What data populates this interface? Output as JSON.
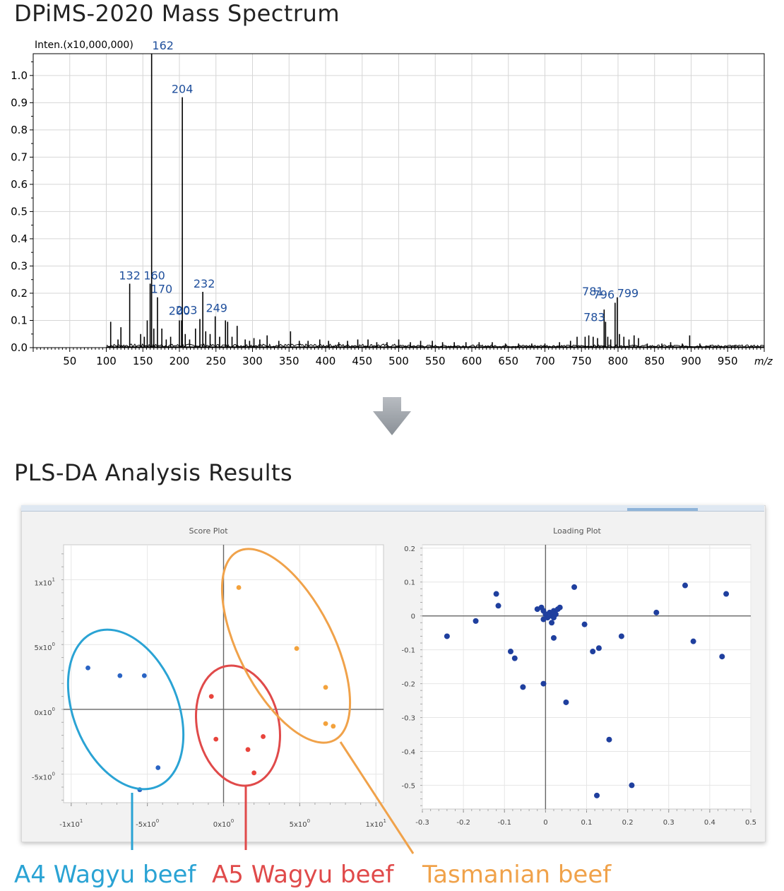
{
  "headings": {
    "mass_spectrum": "DPiMS-2020 Mass Spectrum",
    "plsda": "PLS-DA Analysis Results"
  },
  "groups": [
    {
      "label": "A4 Wagyu beef",
      "color": "#2aa3d4"
    },
    {
      "label": "A5 Wagyu beef",
      "color": "#e04a4a"
    },
    {
      "label": "Tasmanian beef",
      "color": "#f0a24a"
    }
  ],
  "icons": {
    "arrow": "down-arrow-icon"
  },
  "chart_data": [
    {
      "type": "line",
      "ylabel": "Inten.(x10,000,000)",
      "xlabel": "m/z",
      "xlim": [
        0,
        1000
      ],
      "ylim": [
        0,
        1.08
      ],
      "grid": true,
      "x_ticks": [
        50,
        100,
        150,
        200,
        250,
        300,
        350,
        400,
        450,
        500,
        550,
        600,
        650,
        700,
        750,
        800,
        850,
        900,
        950
      ],
      "y_ticks": [
        "0.0",
        "0.1",
        "0.2",
        "0.3",
        "0.4",
        "0.5",
        "0.6",
        "0.7",
        "0.8",
        "0.9",
        "1.0"
      ],
      "line_color": "#000000",
      "label_color": "#1f4f9c",
      "peaks": [
        {
          "mz": 106,
          "i": 0.095
        },
        {
          "mz": 116,
          "i": 0.03
        },
        {
          "mz": 120,
          "i": 0.075
        },
        {
          "mz": 132,
          "i": 0.235
        },
        {
          "mz": 147,
          "i": 0.05
        },
        {
          "mz": 152,
          "i": 0.04
        },
        {
          "mz": 156,
          "i": 0.1
        },
        {
          "mz": 160,
          "i": 0.235
        },
        {
          "mz": 162,
          "i": 1.08
        },
        {
          "mz": 165,
          "i": 0.07
        },
        {
          "mz": 170,
          "i": 0.185
        },
        {
          "mz": 176,
          "i": 0.07
        },
        {
          "mz": 182,
          "i": 0.03
        },
        {
          "mz": 188,
          "i": 0.04
        },
        {
          "mz": 200,
          "i": 0.1
        },
        {
          "mz": 203,
          "i": 0.1
        },
        {
          "mz": 204,
          "i": 0.92
        },
        {
          "mz": 208,
          "i": 0.05
        },
        {
          "mz": 214,
          "i": 0.03
        },
        {
          "mz": 222,
          "i": 0.07
        },
        {
          "mz": 228,
          "i": 0.105
        },
        {
          "mz": 232,
          "i": 0.205
        },
        {
          "mz": 236,
          "i": 0.06
        },
        {
          "mz": 242,
          "i": 0.05
        },
        {
          "mz": 249,
          "i": 0.115
        },
        {
          "mz": 255,
          "i": 0.04
        },
        {
          "mz": 263,
          "i": 0.1
        },
        {
          "mz": 266,
          "i": 0.095
        },
        {
          "mz": 272,
          "i": 0.04
        },
        {
          "mz": 279,
          "i": 0.08
        },
        {
          "mz": 290,
          "i": 0.03
        },
        {
          "mz": 296,
          "i": 0.025
        },
        {
          "mz": 302,
          "i": 0.035
        },
        {
          "mz": 310,
          "i": 0.03
        },
        {
          "mz": 320,
          "i": 0.045
        },
        {
          "mz": 336,
          "i": 0.025
        },
        {
          "mz": 352,
          "i": 0.06
        },
        {
          "mz": 364,
          "i": 0.025
        },
        {
          "mz": 376,
          "i": 0.025
        },
        {
          "mz": 392,
          "i": 0.03
        },
        {
          "mz": 404,
          "i": 0.025
        },
        {
          "mz": 418,
          "i": 0.02
        },
        {
          "mz": 430,
          "i": 0.025
        },
        {
          "mz": 444,
          "i": 0.03
        },
        {
          "mz": 458,
          "i": 0.03
        },
        {
          "mz": 470,
          "i": 0.02
        },
        {
          "mz": 484,
          "i": 0.02
        },
        {
          "mz": 500,
          "i": 0.03
        },
        {
          "mz": 516,
          "i": 0.02
        },
        {
          "mz": 530,
          "i": 0.025
        },
        {
          "mz": 546,
          "i": 0.025
        },
        {
          "mz": 560,
          "i": 0.02
        },
        {
          "mz": 576,
          "i": 0.02
        },
        {
          "mz": 592,
          "i": 0.02
        },
        {
          "mz": 610,
          "i": 0.02
        },
        {
          "mz": 628,
          "i": 0.02
        },
        {
          "mz": 646,
          "i": 0.015
        },
        {
          "mz": 664,
          "i": 0.015
        },
        {
          "mz": 682,
          "i": 0.015
        },
        {
          "mz": 700,
          "i": 0.015
        },
        {
          "mz": 720,
          "i": 0.02
        },
        {
          "mz": 735,
          "i": 0.025
        },
        {
          "mz": 744,
          "i": 0.04
        },
        {
          "mz": 755,
          "i": 0.04
        },
        {
          "mz": 760,
          "i": 0.045
        },
        {
          "mz": 766,
          "i": 0.04
        },
        {
          "mz": 772,
          "i": 0.035
        },
        {
          "mz": 781,
          "i": 0.14
        },
        {
          "mz": 783,
          "i": 0.095
        },
        {
          "mz": 786,
          "i": 0.04
        },
        {
          "mz": 790,
          "i": 0.03
        },
        {
          "mz": 796,
          "i": 0.165
        },
        {
          "mz": 799,
          "i": 0.185
        },
        {
          "mz": 802,
          "i": 0.05
        },
        {
          "mz": 808,
          "i": 0.04
        },
        {
          "mz": 815,
          "i": 0.03
        },
        {
          "mz": 822,
          "i": 0.045
        },
        {
          "mz": 828,
          "i": 0.035
        },
        {
          "mz": 840,
          "i": 0.015
        },
        {
          "mz": 860,
          "i": 0.015
        },
        {
          "mz": 872,
          "i": 0.02
        },
        {
          "mz": 888,
          "i": 0.015
        },
        {
          "mz": 898,
          "i": 0.045
        },
        {
          "mz": 912,
          "i": 0.015
        },
        {
          "mz": 926,
          "i": 0.01
        },
        {
          "mz": 960,
          "i": 0.008
        }
      ],
      "annotations": [
        {
          "text": "162",
          "mz": 162
        },
        {
          "text": "204",
          "mz": 204
        },
        {
          "text": "132",
          "mz": 132
        },
        {
          "text": "160",
          "mz": 160
        },
        {
          "text": "170",
          "mz": 170
        },
        {
          "text": "203",
          "mz": 203
        },
        {
          "text": "200",
          "mz": 200
        },
        {
          "text": "232",
          "mz": 232
        },
        {
          "text": "249",
          "mz": 249
        },
        {
          "text": "796",
          "mz": 796
        },
        {
          "text": "799",
          "mz": 799
        },
        {
          "text": "781",
          "mz": 781
        },
        {
          "text": "783",
          "mz": 783
        }
      ]
    },
    {
      "type": "scatter",
      "title": "Score Plot",
      "xlim": [
        -1.05,
        1.05
      ],
      "ylim": [
        -0.72,
        1.27
      ],
      "x_ticks": [
        {
          "v": -1,
          "base": "-1x10",
          "exp": "1"
        },
        {
          "v": -0.5,
          "base": "-5x10",
          "exp": "0"
        },
        {
          "v": 0,
          "base": "0x10",
          "exp": "0"
        },
        {
          "v": 0.5,
          "base": "5x10",
          "exp": "0"
        },
        {
          "v": 1,
          "base": "1x10",
          "exp": "1"
        }
      ],
      "y_ticks": [
        {
          "v": 1,
          "base": "1x10",
          "exp": "1"
        },
        {
          "v": 0.5,
          "base": "5x10",
          "exp": "0"
        },
        {
          "v": 0,
          "base": "0x10",
          "exp": "0"
        },
        {
          "v": -0.5,
          "base": "-5x10",
          "exp": "0"
        }
      ],
      "series": [
        {
          "name": "A4 Wagyu beef",
          "color": "#2a64c4",
          "points": [
            [
              -0.89,
              0.32
            ],
            [
              -0.68,
              0.26
            ],
            [
              -0.52,
              0.26
            ],
            [
              -0.43,
              -0.45
            ],
            [
              -0.55,
              -0.62
            ]
          ]
        },
        {
          "name": "A5 Wagyu beef",
          "color": "#e8443c",
          "points": [
            [
              -0.08,
              0.1
            ],
            [
              -0.05,
              -0.23
            ],
            [
              0.16,
              -0.31
            ],
            [
              0.26,
              -0.21
            ],
            [
              0.2,
              -0.49
            ]
          ]
        },
        {
          "name": "Tasmanian beef",
          "color": "#f3a23c",
          "points": [
            [
              0.1,
              0.94
            ],
            [
              0.48,
              0.47
            ],
            [
              0.67,
              0.17
            ],
            [
              0.67,
              -0.11
            ],
            [
              0.72,
              -0.13
            ]
          ]
        }
      ]
    },
    {
      "type": "scatter",
      "title": "Loading Plot",
      "xlim": [
        -0.3,
        0.5
      ],
      "ylim": [
        -0.57,
        0.21
      ],
      "x_ticks": [
        "-0.3",
        "-0.2",
        "-0.1",
        "0",
        "0.1",
        "0.2",
        "0.3",
        "0.4",
        "0.5"
      ],
      "y_ticks": [
        "0.2",
        "0.1",
        "0",
        "-0.1",
        "-0.2",
        "-0.3",
        "-0.4",
        "-0.5"
      ],
      "x_tick_values": [
        -0.3,
        -0.2,
        -0.1,
        0,
        0.1,
        0.2,
        0.3,
        0.4,
        0.5
      ],
      "y_tick_values": [
        0.2,
        0.1,
        0,
        -0.1,
        -0.2,
        -0.3,
        -0.4,
        -0.5
      ],
      "color": "#1f3f9e",
      "points": [
        [
          -0.24,
          -0.06
        ],
        [
          -0.17,
          -0.015
        ],
        [
          -0.12,
          0.065
        ],
        [
          -0.115,
          0.03
        ],
        [
          -0.085,
          -0.105
        ],
        [
          -0.075,
          -0.125
        ],
        [
          -0.055,
          -0.21
        ],
        [
          -0.02,
          0.02
        ],
        [
          -0.01,
          0.025
        ],
        [
          -0.005,
          0.015
        ],
        [
          0.0,
          0.005
        ],
        [
          0.005,
          -0.005
        ],
        [
          0.01,
          0.01
        ],
        [
          0.015,
          0.0
        ],
        [
          -0.005,
          -0.01
        ],
        [
          0.02,
          0.015
        ],
        [
          0.025,
          0.005
        ],
        [
          0.015,
          -0.02
        ],
        [
          0.03,
          0.02
        ],
        [
          0.02,
          -0.005
        ],
        [
          0.035,
          0.025
        ],
        [
          -0.005,
          -0.2
        ],
        [
          0.02,
          -0.065
        ],
        [
          0.05,
          -0.255
        ],
        [
          0.07,
          0.085
        ],
        [
          0.095,
          -0.025
        ],
        [
          0.115,
          -0.105
        ],
        [
          0.13,
          -0.095
        ],
        [
          0.155,
          -0.365
        ],
        [
          0.125,
          -0.53
        ],
        [
          0.185,
          -0.06
        ],
        [
          0.21,
          -0.5
        ],
        [
          0.27,
          0.01
        ],
        [
          0.34,
          0.09
        ],
        [
          0.36,
          -0.075
        ],
        [
          0.43,
          -0.12
        ],
        [
          0.44,
          0.065
        ]
      ]
    }
  ]
}
